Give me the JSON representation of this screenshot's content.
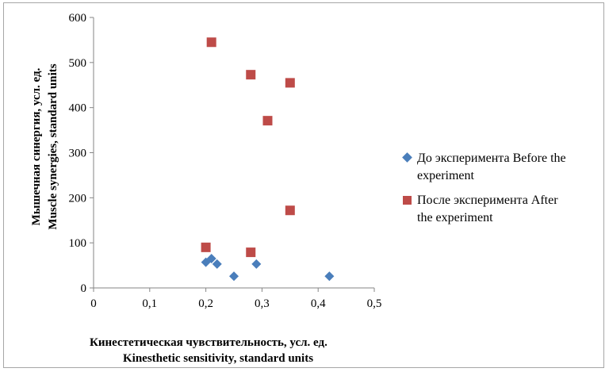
{
  "chart_data": {
    "type": "scatter",
    "title": "",
    "xlabel": [
      "Кинестетическая  чувствительность,  усл. ед.",
      "Kinesthetic sensitivity, standard units"
    ],
    "ylabel": [
      "Мышечная синергия, усл. ед.",
      "Muscle synergies, standard units"
    ],
    "xlim": [
      0,
      0.5
    ],
    "ylim": [
      0,
      600
    ],
    "x_ticks": [
      "0",
      "0,1",
      "0,2",
      "0,3",
      "0,4",
      "0,5"
    ],
    "y_ticks": [
      "0",
      "100",
      "200",
      "300",
      "400",
      "500",
      "600"
    ],
    "legend_position": "right",
    "series": [
      {
        "name": "До эксперимента Before the experiment",
        "legend_lines": [
          "До эксперимента Before the",
          "experiment"
        ],
        "marker": "diamond",
        "color": "#4a7ebb",
        "x": [
          0.2,
          0.21,
          0.22,
          0.25,
          0.29,
          0.42
        ],
        "y": [
          57,
          65,
          53,
          26,
          53,
          26
        ]
      },
      {
        "name": "После эксперимента After the experiment",
        "legend_lines": [
          "После эксперимента After",
          "the experiment"
        ],
        "marker": "square",
        "color": "#be4b48",
        "x": [
          0.21,
          0.28,
          0.35,
          0.31,
          0.35,
          0.2,
          0.28
        ],
        "y": [
          545,
          473,
          455,
          371,
          172,
          90,
          79
        ]
      }
    ]
  }
}
